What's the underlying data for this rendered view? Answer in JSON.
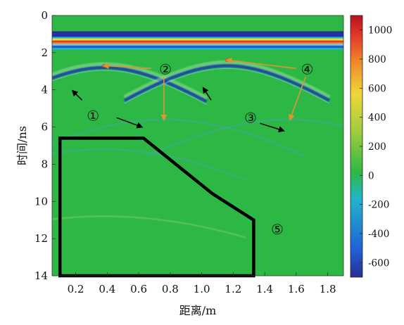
{
  "chart_data": {
    "type": "heatmap",
    "xlabel": "距离/m",
    "ylabel": "时间/ns",
    "xlim": [
      0.05,
      1.9
    ],
    "ylim": [
      0,
      14
    ],
    "x_ticks": [
      "0.2",
      "0.4",
      "0.6",
      "0.8",
      "1.0",
      "1.2",
      "1.4",
      "1.6",
      "1.8"
    ],
    "y_ticks": [
      "0",
      "2",
      "4",
      "6",
      "8",
      "10",
      "12",
      "14"
    ],
    "colorbar": {
      "range": [
        -700,
        1100
      ],
      "ticks": [
        "1000",
        "800",
        "600",
        "400",
        "200",
        "0",
        "-200",
        "-400",
        "-600"
      ],
      "colormap": "jet"
    },
    "colors": {
      "background_field": "#2db845",
      "direct_wave_band": "#d8332a",
      "hyperbola_negative": "#1f5fd6",
      "annotation_arrow": "#cc8a3a",
      "region_outline": "#000000"
    },
    "hyperbolas": [
      {
        "apex_x": 0.38,
        "apex_t": 2.8,
        "strength": "strong"
      },
      {
        "apex_x": 1.16,
        "apex_t": 2.7,
        "strength": "strong"
      },
      {
        "apex_x": 0.76,
        "apex_t": 5.6,
        "strength": "weak"
      },
      {
        "apex_x": 1.55,
        "apex_t": 5.6,
        "strength": "weak"
      },
      {
        "apex_x": 0.38,
        "apex_t": 7.2,
        "strength": "weak"
      },
      {
        "apex_x": 0.38,
        "apex_t": 10.8,
        "strength": "faint"
      }
    ],
    "region_polygon": [
      [
        0.1,
        6.6
      ],
      [
        0.63,
        6.6
      ],
      [
        1.07,
        9.6
      ],
      [
        1.33,
        11.0
      ],
      [
        1.33,
        14.0
      ],
      [
        0.1,
        14.0
      ]
    ],
    "annotations": [
      {
        "label": "①",
        "x": 0.31,
        "t": 5.4
      },
      {
        "label": "②",
        "x": 0.77,
        "t": 2.9
      },
      {
        "label": "③",
        "x": 1.31,
        "t": 5.5
      },
      {
        "label": "④",
        "x": 1.67,
        "t": 2.9
      },
      {
        "label": "⑤",
        "x": 1.48,
        "t": 11.5
      }
    ]
  }
}
